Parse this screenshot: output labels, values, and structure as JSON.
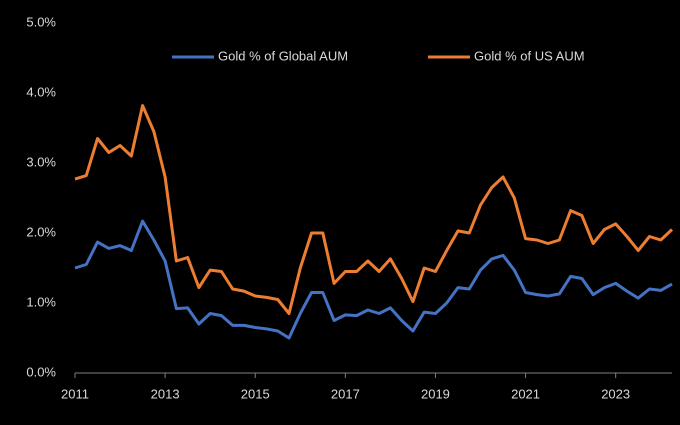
{
  "chart_data": {
    "type": "line",
    "x": [
      2011,
      2011.25,
      2011.5,
      2011.75,
      2012,
      2012.25,
      2012.5,
      2012.75,
      2013,
      2013.25,
      2013.5,
      2013.75,
      2014,
      2014.25,
      2014.5,
      2014.75,
      2015,
      2015.25,
      2015.5,
      2015.75,
      2016,
      2016.25,
      2016.5,
      2016.75,
      2017,
      2017.25,
      2017.5,
      2017.75,
      2018,
      2018.25,
      2018.5,
      2018.75,
      2019,
      2019.25,
      2019.5,
      2019.75,
      2020,
      2020.25,
      2020.5,
      2020.75,
      2021,
      2021.25,
      2021.5,
      2021.75,
      2022,
      2022.25,
      2022.5,
      2022.75,
      2023,
      2023.25,
      2023.5,
      2023.75,
      2024,
      2024.25
    ],
    "series": [
      {
        "name": "Gold % of Global AUM",
        "color": "#4472c4",
        "values": [
          1.5,
          1.55,
          1.87,
          1.78,
          1.82,
          1.75,
          2.17,
          1.9,
          1.6,
          0.92,
          0.93,
          0.7,
          0.85,
          0.82,
          0.68,
          0.68,
          0.65,
          0.63,
          0.6,
          0.5,
          0.85,
          1.15,
          1.15,
          0.75,
          0.83,
          0.82,
          0.9,
          0.85,
          0.93,
          0.75,
          0.6,
          0.87,
          0.85,
          1.0,
          1.22,
          1.2,
          1.47,
          1.63,
          1.68,
          1.47,
          1.15,
          1.12,
          1.1,
          1.13,
          1.38,
          1.35,
          1.12,
          1.22,
          1.28,
          1.17,
          1.07,
          1.2,
          1.18,
          1.27
        ]
      },
      {
        "name": "Gold % of US AUM",
        "color": "#ed7d31",
        "values": [
          2.77,
          2.82,
          3.35,
          3.15,
          3.25,
          3.1,
          3.82,
          3.45,
          2.8,
          1.6,
          1.65,
          1.22,
          1.47,
          1.45,
          1.2,
          1.17,
          1.1,
          1.08,
          1.05,
          0.85,
          1.5,
          2.0,
          2.0,
          1.28,
          1.45,
          1.45,
          1.6,
          1.45,
          1.63,
          1.35,
          1.02,
          1.5,
          1.45,
          1.75,
          2.03,
          2.0,
          2.4,
          2.65,
          2.8,
          2.5,
          1.92,
          1.9,
          1.85,
          1.9,
          2.32,
          2.25,
          1.85,
          2.05,
          2.13,
          1.95,
          1.75,
          1.95,
          1.9,
          2.05
        ]
      }
    ],
    "xlim": [
      2011,
      2024.25
    ],
    "xticks": [
      2011,
      2013,
      2015,
      2017,
      2019,
      2021,
      2023
    ],
    "ylim": [
      0,
      5
    ],
    "yticks": [
      {
        "value": 0,
        "label": "0.0%"
      },
      {
        "value": 1,
        "label": "1.0%"
      },
      {
        "value": 2,
        "label": "2.0%"
      },
      {
        "value": 3,
        "label": "3.0%"
      },
      {
        "value": 4,
        "label": "4.0%"
      },
      {
        "value": 5,
        "label": "5.0%"
      }
    ],
    "grid": false,
    "legend": "top"
  }
}
